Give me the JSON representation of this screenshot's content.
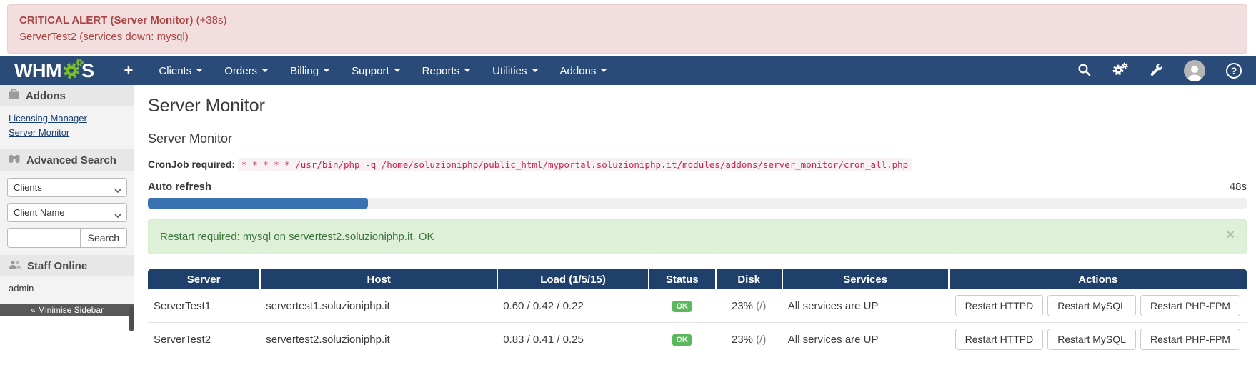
{
  "alert_bar": {
    "title": "CRITICAL ALERT (Server Monitor)",
    "elapsed": "(+38s)",
    "message": "ServerTest2 (services down: mysql)"
  },
  "navbar": {
    "logo_prefix": "WHM",
    "logo_suffix": "S",
    "plus_label": "+",
    "items": [
      "Clients",
      "Orders",
      "Billing",
      "Support",
      "Reports",
      "Utilities",
      "Addons"
    ],
    "help_glyph": "?"
  },
  "sidebar": {
    "addons": {
      "title": "Addons",
      "links": [
        "Licensing Manager",
        "Server Monitor"
      ]
    },
    "advanced_search": {
      "title": "Advanced Search",
      "select1": "Clients",
      "select2": "Client Name",
      "search_value": "",
      "search_button": "Search"
    },
    "staff_online": {
      "title": "Staff Online",
      "names": [
        "admin"
      ]
    },
    "minimise_label": "« Minimise Sidebar"
  },
  "main": {
    "page_title": "Server Monitor",
    "section_title": "Server Monitor",
    "cron_label": "CronJob required:",
    "cron_command": "* * * * * /usr/bin/php -q /home/soluzioniphp/public_html/myportal.soluzioniphp.it/modules/addons/server_monitor/cron_all.php",
    "auto_refresh_label": "Auto refresh",
    "countdown": "48s",
    "progress_percent": 20,
    "notice": {
      "message": "Restart required: mysql on servertest2.soluzioniphp.it. OK",
      "close_glyph": "×"
    },
    "table": {
      "columns": [
        "Server",
        "Host",
        "Load (1/5/15)",
        "Status",
        "Disk",
        "Services",
        "Actions"
      ],
      "rows": [
        {
          "server": "ServerTest1",
          "host": "servertest1.soluzioniphp.it",
          "load": "0.60 / 0.42 / 0.22",
          "status": "OK",
          "disk": "23%",
          "disk_note": "(/)",
          "services": "All services are UP",
          "actions": [
            "Restart HTTPD",
            "Restart MySQL",
            "Restart PHP-FPM"
          ]
        },
        {
          "server": "ServerTest2",
          "host": "servertest2.soluzioniphp.it",
          "load": "0.83 / 0.41 / 0.25",
          "status": "OK",
          "disk": "23%",
          "disk_note": "(/)",
          "services": "All services are UP",
          "actions": [
            "Restart HTTPD",
            "Restart MySQL",
            "Restart PHP-FPM"
          ]
        }
      ]
    }
  },
  "colors": {
    "navbar_bg": "#2a4b77",
    "table_header_bg": "#20406c",
    "alert_bg": "#f2dede",
    "alert_text": "#a94442",
    "notice_bg": "#dff0d8",
    "notice_text": "#3c763d",
    "progress_fill": "#3a71b1",
    "badge_ok": "#5cb85c",
    "code_text": "#c7254e",
    "logo_green": "#7bbd2a"
  }
}
